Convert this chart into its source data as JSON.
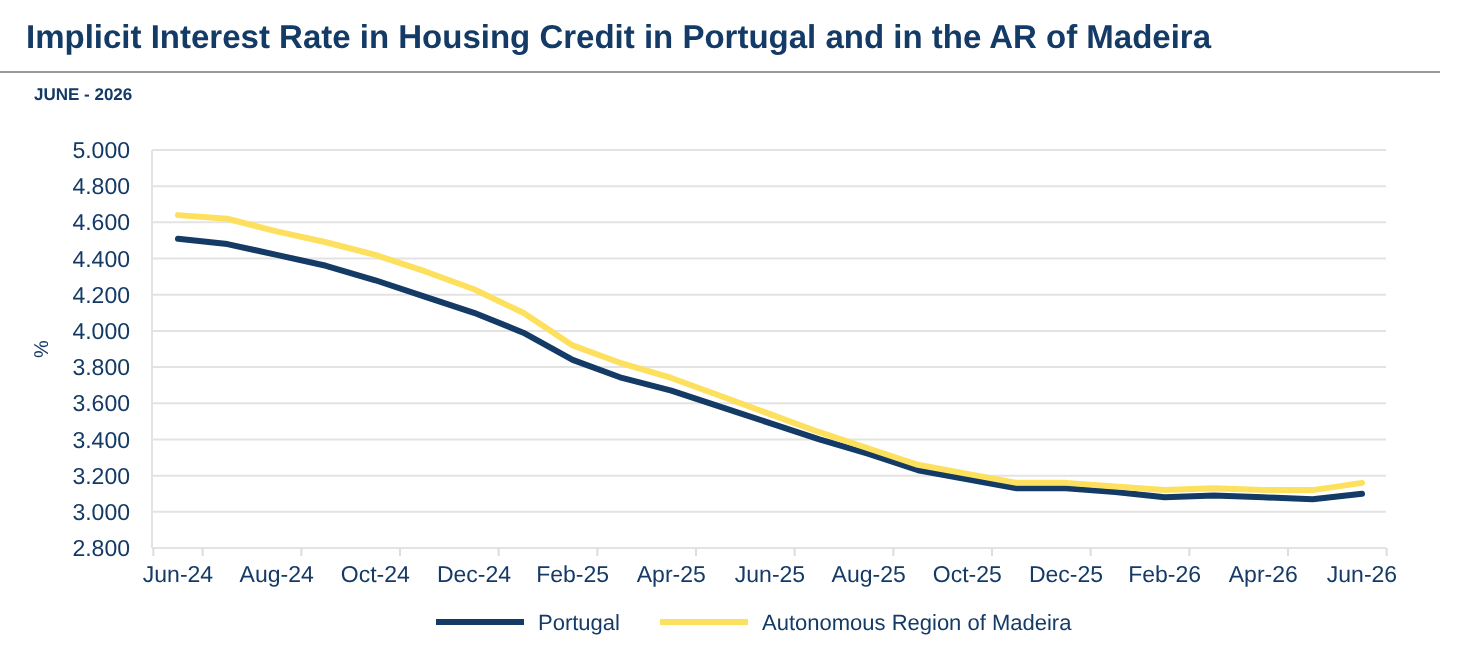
{
  "chart_data": {
    "type": "line",
    "title": "Implicit Interest Rate in Housing Credit in Portugal and in the AR of Madeira",
    "subtitle": "JUNE - 2026",
    "ylabel": "%",
    "categories": [
      "Jun-24",
      null,
      "Aug-24",
      null,
      "Oct-24",
      null,
      "Dec-24",
      null,
      "Feb-25",
      null,
      "Apr-25",
      null,
      "Jun-25",
      null,
      "Aug-25",
      null,
      "Oct-25",
      null,
      "Dec-25",
      null,
      "Feb-26",
      null,
      "Apr-26",
      null,
      "Jun-26"
    ],
    "series": [
      {
        "name": "Portugal",
        "color": "#143a66",
        "values": [
          4.51,
          4.48,
          4.42,
          4.36,
          4.28,
          4.19,
          4.1,
          3.99,
          3.84,
          3.74,
          3.67,
          3.58,
          3.49,
          3.4,
          3.32,
          3.23,
          3.18,
          3.13,
          3.13,
          3.11,
          3.08,
          3.09,
          3.08,
          3.07,
          3.1
        ]
      },
      {
        "name": "Autonomous Region of Madeira",
        "color": "#fde05e",
        "values": [
          4.64,
          4.62,
          4.55,
          4.49,
          4.42,
          4.33,
          4.23,
          4.1,
          3.92,
          3.82,
          3.74,
          3.64,
          3.54,
          3.44,
          3.35,
          3.26,
          3.21,
          3.16,
          3.16,
          3.14,
          3.12,
          3.13,
          3.12,
          3.12,
          3.16
        ]
      }
    ],
    "ylim": [
      2.8,
      5.0
    ],
    "yticks": [
      {
        "value": 2.8,
        "label": "2.800"
      },
      {
        "value": 3.0,
        "label": "3.000"
      },
      {
        "value": 3.2,
        "label": "3.200"
      },
      {
        "value": 3.4,
        "label": "3.400"
      },
      {
        "value": 3.6,
        "label": "3.600"
      },
      {
        "value": 3.8,
        "label": "3.800"
      },
      {
        "value": 4.0,
        "label": "4.000"
      },
      {
        "value": 4.2,
        "label": "4.200"
      },
      {
        "value": 4.4,
        "label": "4.400"
      },
      {
        "value": 4.6,
        "label": "4.600"
      },
      {
        "value": 4.8,
        "label": "4.800"
      },
      {
        "value": 5.0,
        "label": "5.000"
      }
    ],
    "grid": "y",
    "legend": "bottom",
    "marker": "none",
    "line_style": "solid"
  }
}
